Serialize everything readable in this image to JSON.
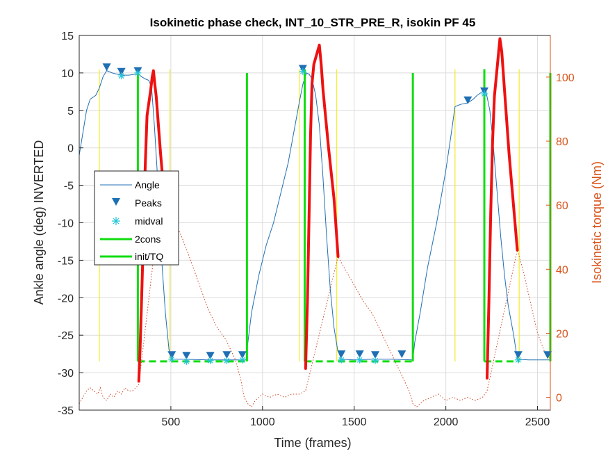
{
  "chart_data": {
    "type": "line",
    "title": "Isokinetic phase check, INT_10_STR_PRE_R, isokin PF 45",
    "xlabel": "Time (frames)",
    "ylabel_left": "Ankle angle (deg) INVERTED",
    "ylabel_right": "Isokinetic torque (Nm)",
    "xlim": [
      0,
      2570
    ],
    "ylim_left": [
      -35,
      15
    ],
    "ylim_right": [
      -4,
      113
    ],
    "x_ticks": [
      500,
      1000,
      1500,
      2000,
      2500
    ],
    "y_left_ticks": [
      -35,
      -30,
      -25,
      -20,
      -15,
      -10,
      -5,
      0,
      5,
      10,
      15
    ],
    "y_right_ticks": [
      0,
      20,
      40,
      60,
      80,
      100
    ],
    "grid": true,
    "legend_position": "center-left",
    "legend": [
      "Angle",
      "Peaks",
      "midval",
      "2cons",
      "init/TQ"
    ],
    "colors": {
      "angle": "#1f6fb4",
      "peaks": "#1f6fb4",
      "midval": "#22c4d6",
      "green": "#11dd11",
      "yellow": "#f2ea28",
      "torque": "#ee1111",
      "torque_dotted": "#cc4422",
      "right_axis": "#d95319"
    },
    "angle_series": [
      [
        0,
        -1
      ],
      [
        20,
        2
      ],
      [
        40,
        5
      ],
      [
        60,
        6.5
      ],
      [
        90,
        7
      ],
      [
        110,
        8
      ],
      [
        130,
        9.5
      ],
      [
        150,
        10.3
      ],
      [
        180,
        10
      ],
      [
        210,
        9.8
      ],
      [
        240,
        9.7
      ],
      [
        270,
        9.7
      ],
      [
        300,
        9.8
      ],
      [
        320,
        9.9
      ],
      [
        340,
        9.5
      ],
      [
        360,
        9.2
      ],
      [
        380,
        9
      ],
      [
        395,
        8
      ],
      [
        410,
        3
      ],
      [
        430,
        -5
      ],
      [
        450,
        -15
      ],
      [
        470,
        -22
      ],
      [
        490,
        -27
      ],
      [
        510,
        -28.2
      ],
      [
        560,
        -28.2
      ],
      [
        700,
        -28.3
      ],
      [
        800,
        -28.3
      ],
      [
        910,
        -28.3
      ],
      [
        920,
        -26
      ],
      [
        940,
        -22
      ],
      [
        980,
        -17
      ],
      [
        1020,
        -13
      ],
      [
        1060,
        -10
      ],
      [
        1100,
        -6
      ],
      [
        1140,
        -2
      ],
      [
        1170,
        2
      ],
      [
        1200,
        6
      ],
      [
        1220,
        8.5
      ],
      [
        1240,
        10
      ],
      [
        1255,
        9.8
      ],
      [
        1270,
        9.2
      ],
      [
        1290,
        7
      ],
      [
        1310,
        3
      ],
      [
        1330,
        -4
      ],
      [
        1350,
        -12
      ],
      [
        1370,
        -19
      ],
      [
        1390,
        -24
      ],
      [
        1410,
        -27
      ],
      [
        1430,
        -28.2
      ],
      [
        1500,
        -28.3
      ],
      [
        1600,
        -28.2
      ],
      [
        1700,
        -28.2
      ],
      [
        1820,
        -28.3
      ],
      [
        1830,
        -26
      ],
      [
        1860,
        -22
      ],
      [
        1900,
        -16
      ],
      [
        1950,
        -10
      ],
      [
        2000,
        -3
      ],
      [
        2030,
        2
      ],
      [
        2050,
        5.5
      ],
      [
        2080,
        5.8
      ],
      [
        2120,
        6
      ],
      [
        2150,
        6.5
      ],
      [
        2170,
        7
      ],
      [
        2200,
        7.5
      ],
      [
        2220,
        7.4
      ],
      [
        2240,
        5
      ],
      [
        2260,
        0
      ],
      [
        2280,
        -6
      ],
      [
        2300,
        -12
      ],
      [
        2320,
        -17
      ],
      [
        2340,
        -21
      ],
      [
        2370,
        -25
      ],
      [
        2390,
        -28.2
      ],
      [
        2450,
        -28.3
      ],
      [
        2570,
        -28.3
      ]
    ],
    "peaks": [
      [
        150,
        10.8
      ],
      [
        230,
        10.2
      ],
      [
        320,
        10.3
      ],
      [
        505,
        -27.6
      ],
      [
        585,
        -27.7
      ],
      [
        715,
        -27.7
      ],
      [
        805,
        -27.6
      ],
      [
        890,
        -27.6
      ],
      [
        1220,
        10.6
      ],
      [
        1430,
        -27.5
      ],
      [
        1530,
        -27.5
      ],
      [
        1615,
        -27.6
      ],
      [
        1760,
        -27.5
      ],
      [
        2120,
        6.4
      ],
      [
        2210,
        7.6
      ],
      [
        2395,
        -27.6
      ],
      [
        2555,
        -27.6
      ]
    ],
    "midval": [
      [
        230,
        9.6
      ],
      [
        320,
        10
      ],
      [
        505,
        -28.2
      ],
      [
        585,
        -28.5
      ],
      [
        715,
        -28.4
      ],
      [
        805,
        -28.4
      ],
      [
        890,
        -28.3
      ],
      [
        1220,
        10.2
      ],
      [
        1430,
        -28.3
      ],
      [
        1530,
        -28.3
      ],
      [
        1615,
        -28.4
      ],
      [
        2210,
        7.2
      ],
      [
        2395,
        -28.3
      ]
    ],
    "torque_thick": [
      [
        {
          "x": 325,
          "y": 5
        },
        {
          "x": 332,
          "y": 15
        },
        {
          "x": 340,
          "y": 30
        },
        {
          "x": 350,
          "y": 50
        },
        {
          "x": 360,
          "y": 72
        },
        {
          "x": 370,
          "y": 88
        },
        {
          "x": 380,
          "y": 92
        },
        {
          "x": 390,
          "y": 96
        },
        {
          "x": 398,
          "y": 100
        },
        {
          "x": 405,
          "y": 102
        },
        {
          "x": 412,
          "y": 98
        },
        {
          "x": 420,
          "y": 94
        },
        {
          "x": 428,
          "y": 88
        },
        {
          "x": 436,
          "y": 82
        },
        {
          "x": 444,
          "y": 76
        },
        {
          "x": 450,
          "y": 72
        },
        {
          "x": 456,
          "y": 68
        }
      ],
      [
        {
          "x": 1235,
          "y": 9
        },
        {
          "x": 1245,
          "y": 30
        },
        {
          "x": 1255,
          "y": 60
        },
        {
          "x": 1262,
          "y": 82
        },
        {
          "x": 1270,
          "y": 98
        },
        {
          "x": 1280,
          "y": 104
        },
        {
          "x": 1290,
          "y": 106
        },
        {
          "x": 1300,
          "y": 108
        },
        {
          "x": 1310,
          "y": 110
        },
        {
          "x": 1320,
          "y": 104
        },
        {
          "x": 1330,
          "y": 96
        },
        {
          "x": 1340,
          "y": 90
        },
        {
          "x": 1350,
          "y": 84
        },
        {
          "x": 1360,
          "y": 78
        },
        {
          "x": 1375,
          "y": 70
        },
        {
          "x": 1390,
          "y": 62
        },
        {
          "x": 1400,
          "y": 54
        },
        {
          "x": 1412,
          "y": 44
        }
      ],
      [
        {
          "x": 2225,
          "y": 6
        },
        {
          "x": 2235,
          "y": 30
        },
        {
          "x": 2245,
          "y": 58
        },
        {
          "x": 2255,
          "y": 80
        },
        {
          "x": 2265,
          "y": 94
        },
        {
          "x": 2275,
          "y": 100
        },
        {
          "x": 2285,
          "y": 106
        },
        {
          "x": 2295,
          "y": 112
        },
        {
          "x": 2305,
          "y": 108
        },
        {
          "x": 2315,
          "y": 100
        },
        {
          "x": 2330,
          "y": 88
        },
        {
          "x": 2345,
          "y": 76
        },
        {
          "x": 2360,
          "y": 66
        },
        {
          "x": 2375,
          "y": 56
        },
        {
          "x": 2390,
          "y": 46
        }
      ]
    ],
    "torque_dotted": [
      [
        0,
        -2
      ],
      [
        20,
        0
      ],
      [
        40,
        2
      ],
      [
        60,
        3
      ],
      [
        80,
        2
      ],
      [
        100,
        1
      ],
      [
        115,
        3
      ],
      [
        130,
        0
      ],
      [
        150,
        -1
      ],
      [
        170,
        1
      ],
      [
        190,
        0
      ],
      [
        210,
        2
      ],
      [
        230,
        1
      ],
      [
        250,
        3
      ],
      [
        270,
        2
      ],
      [
        290,
        2
      ],
      [
        310,
        3
      ],
      [
        325,
        4
      ],
      [
        456,
        68
      ],
      [
        480,
        62
      ],
      [
        520,
        55
      ],
      [
        560,
        50
      ],
      [
        600,
        44
      ],
      [
        650,
        36
      ],
      [
        700,
        28
      ],
      [
        750,
        22
      ],
      [
        800,
        18
      ],
      [
        850,
        12
      ],
      [
        880,
        6
      ],
      [
        900,
        0
      ],
      [
        920,
        -2
      ],
      [
        940,
        -3
      ],
      [
        960,
        -1
      ],
      [
        980,
        0
      ],
      [
        1000,
        1
      ],
      [
        1040,
        0
      ],
      [
        1080,
        1
      ],
      [
        1120,
        0
      ],
      [
        1160,
        1
      ],
      [
        1200,
        1
      ],
      [
        1235,
        2
      ],
      [
        1412,
        44
      ],
      [
        1450,
        40
      ],
      [
        1500,
        35
      ],
      [
        1550,
        30
      ],
      [
        1600,
        26
      ],
      [
        1650,
        20
      ],
      [
        1700,
        14
      ],
      [
        1750,
        8
      ],
      [
        1800,
        2
      ],
      [
        1820,
        -2
      ],
      [
        1840,
        -3
      ],
      [
        1880,
        -1
      ],
      [
        1920,
        0
      ],
      [
        1960,
        1
      ],
      [
        2000,
        -1
      ],
      [
        2040,
        0
      ],
      [
        2080,
        -1
      ],
      [
        2120,
        0
      ],
      [
        2160,
        -1
      ],
      [
        2200,
        0
      ],
      [
        2225,
        2
      ],
      [
        2390,
        46
      ],
      [
        2420,
        40
      ],
      [
        2460,
        30
      ],
      [
        2500,
        20
      ],
      [
        2540,
        14
      ],
      [
        2570,
        12
      ]
    ],
    "green_vlines": [
      320,
      1230,
      2210
    ],
    "green_vlines_2cons": [
      915,
      1820,
      2570
    ],
    "green_dashed_segments": [
      [
        320,
        905
      ],
      [
        1230,
        1820
      ],
      [
        2210,
        2400
      ]
    ],
    "green_dashed_level": -28.5,
    "yellow_vlines": [
      110,
      495,
      1200,
      1405,
      2050,
      2400
    ],
    "yellow_span": [
      -28.5,
      10.5
    ]
  }
}
